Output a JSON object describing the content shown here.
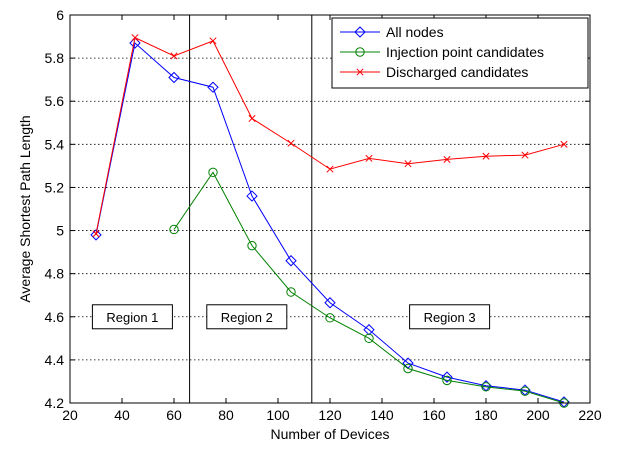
{
  "chart_data": {
    "type": "line",
    "title": "",
    "xlabel": "Number of Devices",
    "ylabel": "Average Shortest Path Length",
    "xlim": [
      20,
      220
    ],
    "ylim": [
      4.2,
      6
    ],
    "xticks": [
      20,
      40,
      60,
      80,
      100,
      120,
      140,
      160,
      180,
      200,
      220
    ],
    "yticks": [
      4.2,
      4.4,
      4.6,
      4.8,
      5,
      5.2,
      5.4,
      5.6,
      5.8,
      6
    ],
    "xtick_labels": [
      "20",
      "40",
      "60",
      "80",
      "100",
      "120",
      "140",
      "160",
      "180",
      "200",
      "220"
    ],
    "ytick_labels": [
      "4.2",
      "4.4",
      "4.6",
      "4.8",
      "5",
      "5.2",
      "5.4",
      "5.6",
      "5.8",
      "6"
    ],
    "grid": "horizontal dotted",
    "legend_position": "top-right",
    "vertical_lines": [
      66,
      113
    ],
    "regions": [
      {
        "label": "Region 1",
        "x": 44,
        "y": 4.6
      },
      {
        "label": "Region 2",
        "x": 88,
        "y": 4.6
      },
      {
        "label": "Region 3",
        "x": 166,
        "y": 4.6
      }
    ],
    "series": [
      {
        "name": "All nodes",
        "color": "#0000ff",
        "marker": "diamond",
        "x": [
          30,
          45,
          60,
          75,
          90,
          105,
          120,
          135,
          150,
          165,
          180,
          195,
          210
        ],
        "y": [
          4.98,
          5.87,
          5.71,
          5.665,
          5.16,
          4.86,
          4.665,
          4.54,
          4.385,
          4.32,
          4.28,
          4.26,
          4.205
        ]
      },
      {
        "name": "Injection point candidates",
        "color": "#008000",
        "marker": "circle",
        "x": [
          60,
          75,
          90,
          105,
          120,
          135,
          150,
          165,
          180,
          195,
          210
        ],
        "y": [
          5.005,
          5.27,
          4.93,
          4.715,
          4.595,
          4.5,
          4.36,
          4.305,
          4.275,
          4.255,
          4.2
        ]
      },
      {
        "name": "Discharged candidates",
        "color": "#ff0000",
        "marker": "x",
        "x": [
          30,
          45,
          60,
          75,
          90,
          105,
          120,
          135,
          150,
          165,
          180,
          195,
          210
        ],
        "y": [
          4.985,
          5.895,
          5.81,
          5.88,
          5.52,
          5.405,
          5.285,
          5.335,
          5.31,
          5.33,
          5.345,
          5.35,
          5.4
        ]
      }
    ]
  }
}
